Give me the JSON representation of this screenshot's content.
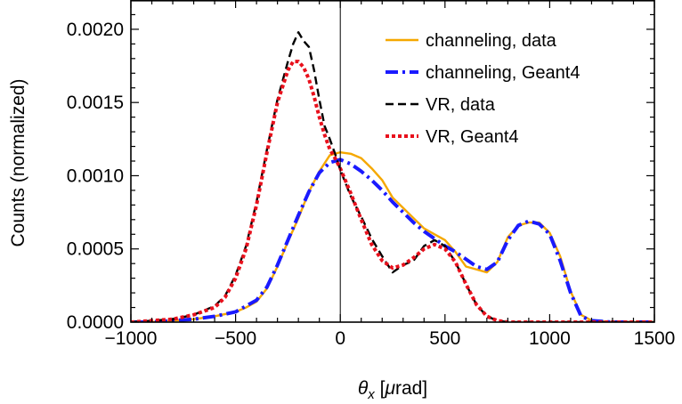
{
  "chart_data": {
    "type": "line",
    "xlabel_symbol": "θ",
    "xlabel_subscript": "x",
    "xlabel_unit_prefix": " [",
    "xlabel_unit_mu": "μ",
    "xlabel_unit_suffix": "rad]",
    "ylabel": "Counts (normalized)",
    "xlim": [
      -1000,
      1500
    ],
    "ylim": [
      0,
      0.0022
    ],
    "x_ticks": [
      -1000,
      -500,
      0,
      500,
      1000,
      1500
    ],
    "x_tick_labels": [
      "−1000",
      "−500",
      "0",
      "500",
      "1000",
      "1500"
    ],
    "y_ticks": [
      0,
      0.0005,
      0.001,
      0.0015,
      0.002
    ],
    "y_tick_labels": [
      "0.0000",
      "0.0005",
      "0.0010",
      "0.0015",
      "0.0020"
    ],
    "vertical_line_x": 0,
    "grid": false,
    "legend_placement": "top-right",
    "series": [
      {
        "name": "channeling, data",
        "color": "#f5a800",
        "style": "solid",
        "x": [
          -1000,
          -900,
          -800,
          -700,
          -600,
          -500,
          -450,
          -400,
          -350,
          -300,
          -250,
          -200,
          -150,
          -100,
          -50,
          0,
          50,
          100,
          150,
          200,
          250,
          300,
          350,
          400,
          450,
          500,
          550,
          600,
          650,
          700,
          750,
          800,
          850,
          900,
          950,
          1000,
          1050,
          1100,
          1150,
          1200,
          1300,
          1400,
          1500
        ],
        "y": [
          0.0,
          0.0,
          1e-05,
          2e-05,
          4e-05,
          7e-05,
          0.0001,
          0.00014,
          0.00023,
          0.00038,
          0.00055,
          0.00071,
          0.00089,
          0.00103,
          0.00114,
          0.00116,
          0.00115,
          0.00112,
          0.00105,
          0.00097,
          0.00085,
          0.00078,
          0.00071,
          0.00064,
          0.0006,
          0.00056,
          0.00048,
          0.00038,
          0.00036,
          0.00034,
          0.00041,
          0.00058,
          0.00066,
          0.00068,
          0.00068,
          0.00061,
          0.00045,
          0.00021,
          5e-05,
          1e-05,
          0.0,
          0.0,
          0.0
        ]
      },
      {
        "name": "channeling, Geant4",
        "color": "#1a1aff",
        "style": "dashdot",
        "x": [
          -1000,
          -900,
          -800,
          -700,
          -600,
          -500,
          -450,
          -400,
          -350,
          -300,
          -250,
          -200,
          -150,
          -100,
          -50,
          0,
          50,
          100,
          150,
          200,
          250,
          300,
          350,
          400,
          450,
          500,
          550,
          600,
          650,
          700,
          750,
          800,
          850,
          900,
          950,
          1000,
          1050,
          1100,
          1150,
          1200,
          1300,
          1400,
          1500
        ],
        "y": [
          0.0,
          0.0,
          1e-05,
          2e-05,
          4e-05,
          7e-05,
          0.00011,
          0.00015,
          0.00024,
          0.00039,
          0.00056,
          0.00073,
          0.00089,
          0.00102,
          0.00109,
          0.00111,
          0.00108,
          0.00103,
          0.00097,
          0.0009,
          0.00082,
          0.00075,
          0.00068,
          0.00062,
          0.00057,
          0.00052,
          0.00048,
          0.00043,
          0.00038,
          0.00036,
          0.00041,
          0.00056,
          0.00066,
          0.00069,
          0.00067,
          0.0006,
          0.00042,
          0.0002,
          4e-05,
          1e-05,
          0.0,
          0.0,
          0.0
        ]
      },
      {
        "name": "VR, data",
        "color": "#000000",
        "style": "dashed",
        "x": [
          -1000,
          -900,
          -800,
          -700,
          -600,
          -550,
          -500,
          -450,
          -400,
          -350,
          -300,
          -250,
          -225,
          -200,
          -175,
          -150,
          -125,
          -100,
          -75,
          -50,
          -25,
          0,
          50,
          100,
          150,
          200,
          250,
          300,
          350,
          400,
          450,
          500,
          550,
          600,
          650,
          700,
          750,
          800,
          900,
          1000,
          1500
        ],
        "y": [
          0.0,
          1e-05,
          2e-05,
          5e-05,
          0.00011,
          0.00018,
          0.00032,
          0.00052,
          0.00082,
          0.00118,
          0.00152,
          0.00178,
          0.0019,
          0.00198,
          0.00192,
          0.00188,
          0.00172,
          0.00152,
          0.00134,
          0.00125,
          0.00115,
          0.00104,
          0.00086,
          0.00072,
          0.00057,
          0.00045,
          0.00034,
          0.00039,
          0.00042,
          0.00052,
          0.00056,
          0.00052,
          0.00041,
          0.00026,
          0.00012,
          4e-05,
          1e-05,
          0.0,
          0.0,
          0.0,
          0.0
        ]
      },
      {
        "name": "VR, Geant4",
        "color": "#e8101c",
        "style": "dotted",
        "x": [
          -1000,
          -900,
          -800,
          -700,
          -600,
          -550,
          -500,
          -450,
          -400,
          -350,
          -300,
          -250,
          -225,
          -200,
          -175,
          -150,
          -125,
          -100,
          -75,
          -50,
          -25,
          0,
          50,
          100,
          150,
          200,
          250,
          300,
          350,
          400,
          450,
          500,
          550,
          600,
          650,
          700,
          750,
          800,
          900,
          1000,
          1500
        ],
        "y": [
          0.0,
          1e-05,
          2e-05,
          5e-05,
          0.0001,
          0.00017,
          0.0003,
          0.0005,
          0.0008,
          0.00116,
          0.0015,
          0.00172,
          0.00178,
          0.00178,
          0.00174,
          0.00166,
          0.00154,
          0.0014,
          0.00128,
          0.00118,
          0.00112,
          0.00105,
          0.00088,
          0.0007,
          0.00053,
          0.00042,
          0.00037,
          0.00039,
          0.00044,
          0.0005,
          0.00053,
          0.0005,
          0.00041,
          0.00026,
          0.00012,
          4e-05,
          1e-05,
          0.0,
          0.0,
          0.0,
          0.0
        ]
      }
    ]
  }
}
